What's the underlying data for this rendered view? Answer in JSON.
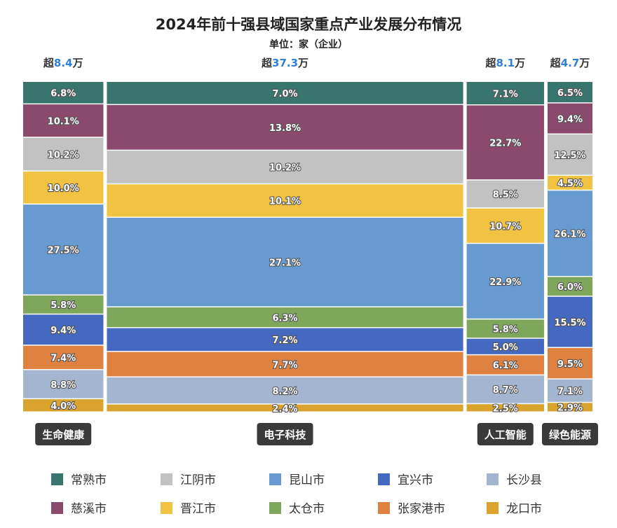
{
  "chart_data": {
    "type": "marimekko",
    "title": "2024年前十强县域国家重点产业发展分布情况",
    "subtitle": "单位：家（企业）",
    "total_prefix": "超",
    "total_suffix": "万",
    "categories": [
      {
        "name": "生命健康",
        "total": "8.4",
        "width_value": 8.4
      },
      {
        "name": "电子科技",
        "total": "37.3",
        "width_value": 37.3
      },
      {
        "name": "人工智能",
        "total": "8.1",
        "width_value": 8.1
      },
      {
        "name": "绿色能源",
        "total": "4.7",
        "width_value": 4.7
      }
    ],
    "series": [
      {
        "name": "常熟市",
        "color": "#38756c",
        "values": [
          6.8,
          7.0,
          7.1,
          6.5
        ]
      },
      {
        "name": "慈溪市",
        "color": "#8b4a6b",
        "values": [
          10.1,
          13.8,
          22.7,
          9.4
        ]
      },
      {
        "name": "江阴市",
        "color": "#c2c2c2",
        "values": [
          10.2,
          10.2,
          8.5,
          12.5
        ]
      },
      {
        "name": "晋江市",
        "color": "#f2c342",
        "values": [
          10.0,
          10.1,
          10.7,
          4.5
        ]
      },
      {
        "name": "昆山市",
        "color": "#669ad1",
        "values": [
          27.5,
          27.1,
          22.9,
          26.1
        ]
      },
      {
        "name": "太仓市",
        "color": "#7ea75b",
        "values": [
          5.8,
          6.3,
          5.8,
          6.0
        ]
      },
      {
        "name": "宜兴市",
        "color": "#4569c1",
        "values": [
          9.4,
          7.2,
          5.0,
          15.5
        ]
      },
      {
        "name": "张家港市",
        "color": "#df8141",
        "values": [
          7.4,
          7.7,
          6.1,
          9.5
        ]
      },
      {
        "name": "长沙县",
        "color": "#a4b5cf",
        "values": [
          8.8,
          8.2,
          8.7,
          7.1
        ]
      },
      {
        "name": "龙口市",
        "color": "#d9a32d",
        "values": [
          4.0,
          2.4,
          2.5,
          2.9
        ]
      }
    ],
    "value_suffix": "%"
  },
  "legend_order": [
    "常熟市",
    "江阴市",
    "昆山市",
    "宜兴市",
    "长沙县",
    "慈溪市",
    "晋江市",
    "太仓市",
    "张家港市",
    "龙口市"
  ]
}
